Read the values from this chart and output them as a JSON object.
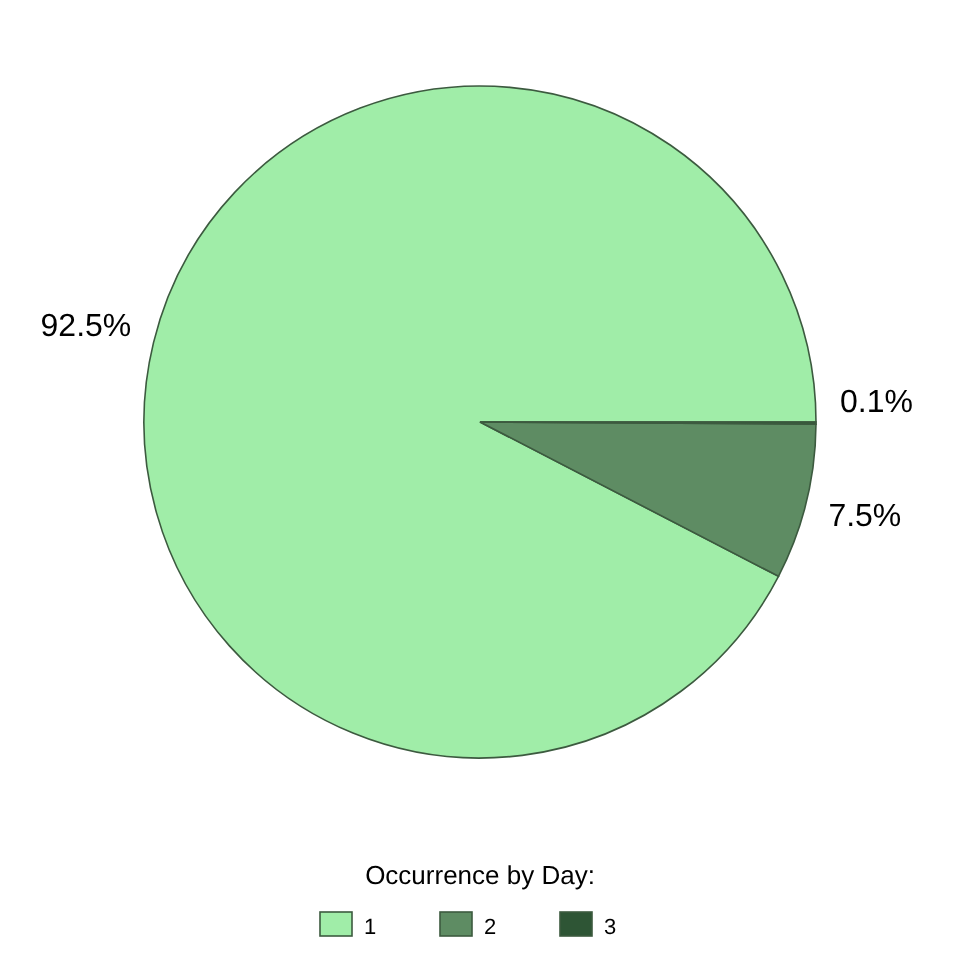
{
  "chart_data": {
    "type": "pie",
    "legend_title": "Occurrence by Day:",
    "legend": "bottom",
    "categories": [
      "1",
      "2",
      "3"
    ],
    "values": [
      92.5,
      7.5,
      0.1
    ],
    "value_labels": [
      "92.5%",
      "7.5%",
      "0.1%"
    ],
    "colors": [
      "#a0eda8",
      "#5e8c63",
      "#2e5535"
    ]
  }
}
